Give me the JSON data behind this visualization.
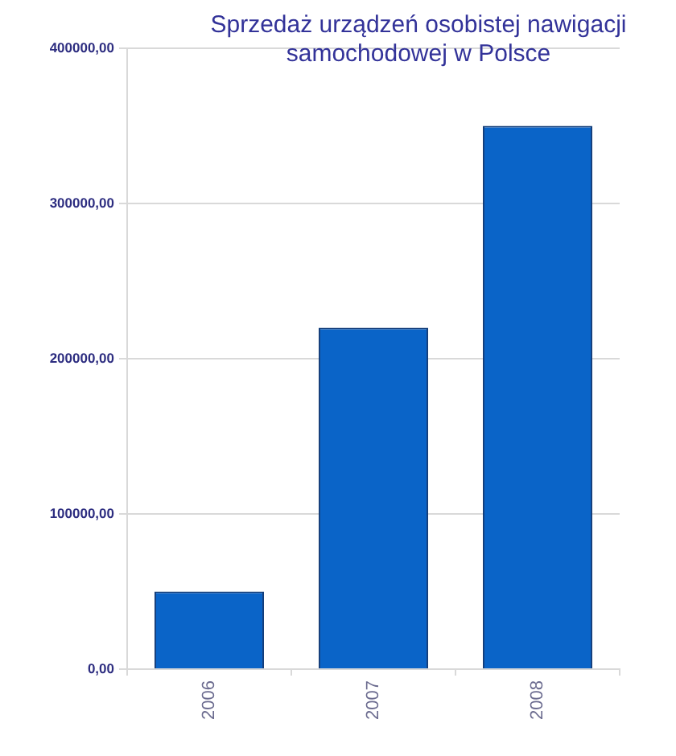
{
  "chart_data": {
    "type": "bar",
    "title": "Sprzedaż urządzeń osobistej nawigacji samochodowej w Polsce",
    "categories": [
      "2006",
      "2007",
      "2008"
    ],
    "values": [
      50000,
      220000,
      350000
    ],
    "color": "#0a64c8",
    "ylim": [
      0,
      400000
    ],
    "yticks": [
      {
        "value": 0,
        "label": "0,00"
      },
      {
        "value": 100000,
        "label": "100000,00"
      },
      {
        "value": 200000,
        "label": "200000,00"
      },
      {
        "value": 300000,
        "label": "300000,00"
      },
      {
        "value": 400000,
        "label": "400000,00"
      }
    ],
    "grid": "y"
  }
}
